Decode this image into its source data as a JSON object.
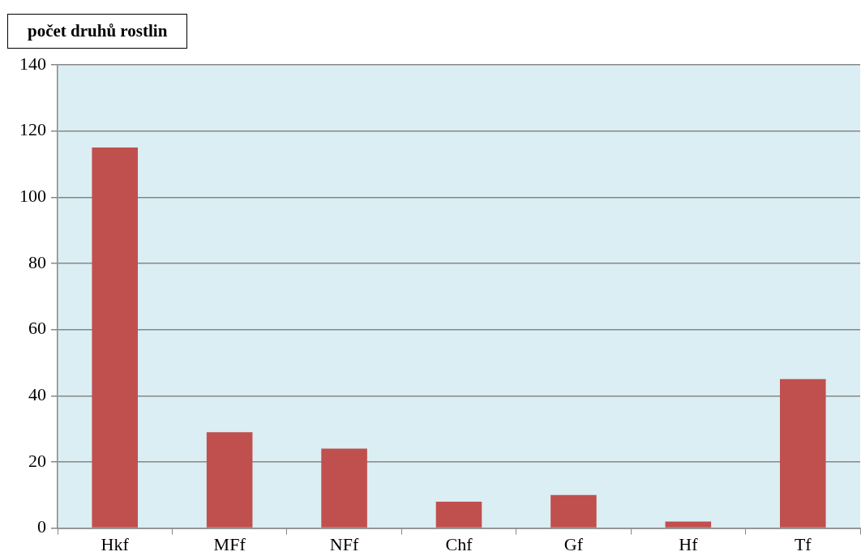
{
  "chart_data": {
    "type": "bar",
    "ylabel": "počet druhů rostlin",
    "categories": [
      "Hkf",
      "MFf",
      "NFf",
      "Chf",
      "Gf",
      "Hf",
      "Tf"
    ],
    "values": [
      115,
      29,
      24,
      8,
      10,
      2,
      45
    ],
    "color": "#c0504d",
    "ylim": [
      0,
      140
    ],
    "yticks": [
      0,
      20,
      40,
      60,
      80,
      100,
      120,
      140
    ],
    "grid": "y",
    "legend": false
  }
}
